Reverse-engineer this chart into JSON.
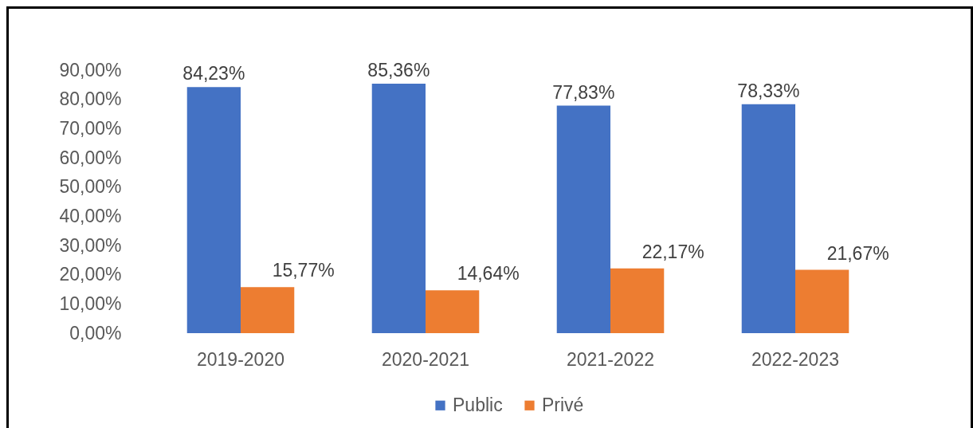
{
  "chart_data": {
    "type": "bar",
    "categories": [
      "2019-2020",
      "2020-2021",
      "2021-2022",
      "2022-2023"
    ],
    "series": [
      {
        "name": "Public",
        "color": "#4472c4",
        "values": [
          84.23,
          85.36,
          77.83,
          78.33
        ],
        "value_labels": [
          "84,23%",
          "85,36%",
          "77,83%",
          "78,33%"
        ]
      },
      {
        "name": "Privé",
        "color": "#ed7d31",
        "values": [
          15.77,
          14.64,
          22.17,
          21.67
        ],
        "value_labels": [
          "15,77%",
          "14,64%",
          "22,17%",
          "21,67%"
        ]
      }
    ],
    "ylim": [
      0,
      90
    ],
    "yticks": [
      {
        "value": 0,
        "label": "0,00%"
      },
      {
        "value": 10,
        "label": "10,00%"
      },
      {
        "value": 20,
        "label": "20,00%"
      },
      {
        "value": 30,
        "label": "30,00%"
      },
      {
        "value": 40,
        "label": "40,00%"
      },
      {
        "value": 50,
        "label": "50,00%"
      },
      {
        "value": 60,
        "label": "60,00%"
      },
      {
        "value": 70,
        "label": "70,00%"
      },
      {
        "value": 80,
        "label": "80,00%"
      },
      {
        "value": 90,
        "label": "90,00%"
      }
    ],
    "legend": "bottom"
  }
}
